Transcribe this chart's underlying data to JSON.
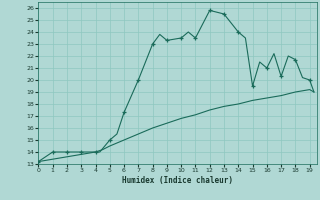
{
  "xlabel": "Humidex (Indice chaleur)",
  "xlim": [
    0,
    19.5
  ],
  "ylim": [
    13,
    26.5
  ],
  "yticks": [
    13,
    14,
    15,
    16,
    17,
    18,
    19,
    20,
    21,
    22,
    23,
    24,
    25,
    26
  ],
  "xticks": [
    0,
    1,
    2,
    3,
    4,
    5,
    6,
    7,
    8,
    9,
    10,
    11,
    12,
    13,
    14,
    15,
    16,
    17,
    18,
    19
  ],
  "bg_color": "#b0d8d4",
  "line_color": "#1a6b5a",
  "grid_color": "#8ec8c0",
  "line1_x": [
    0,
    1,
    2,
    3,
    4,
    4.3,
    5,
    5.5,
    6,
    7,
    8,
    8.5,
    9,
    10,
    10.5,
    11,
    12,
    13,
    14,
    14.5,
    15,
    15.5,
    16,
    16.5,
    17,
    17.5,
    18,
    18.5,
    19,
    19.3
  ],
  "line1_y": [
    13.2,
    14.0,
    14.0,
    14.0,
    14.0,
    14.0,
    15.0,
    15.5,
    17.3,
    20.0,
    23.0,
    23.8,
    23.3,
    23.5,
    24.0,
    23.5,
    25.8,
    25.5,
    24.0,
    23.5,
    19.5,
    21.5,
    21.0,
    22.2,
    20.3,
    22.0,
    21.7,
    20.2,
    20.0,
    19.0
  ],
  "line1_markers_x": [
    0,
    1,
    2,
    3,
    4,
    5,
    6,
    7,
    8,
    9,
    10,
    11,
    12,
    13,
    14,
    15,
    16,
    17,
    18,
    19
  ],
  "line1_markers_y": [
    13.2,
    14.0,
    14.0,
    14.0,
    14.0,
    15.0,
    17.3,
    20.0,
    23.0,
    23.3,
    23.5,
    23.5,
    25.8,
    25.5,
    24.0,
    19.5,
    21.0,
    20.3,
    21.7,
    20.0
  ],
  "line2_x": [
    0,
    1,
    2,
    3,
    4,
    4.5,
    5,
    6,
    7,
    8,
    9,
    10,
    11,
    12,
    13,
    14,
    15,
    16,
    17,
    18,
    19,
    19.3
  ],
  "line2_y": [
    13.2,
    13.4,
    13.6,
    13.8,
    14.0,
    14.2,
    14.5,
    15.0,
    15.5,
    16.0,
    16.4,
    16.8,
    17.1,
    17.5,
    17.8,
    18.0,
    18.3,
    18.5,
    18.7,
    19.0,
    19.2,
    19.0
  ]
}
